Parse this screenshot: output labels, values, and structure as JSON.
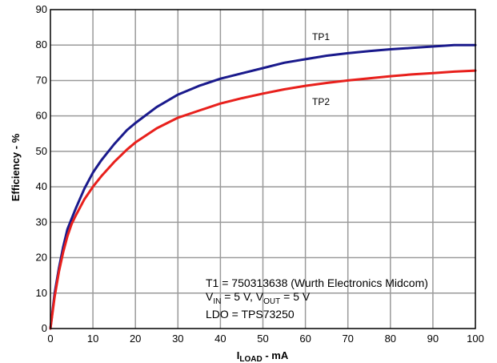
{
  "chart_data": {
    "type": "line",
    "title": "",
    "xlabel": {
      "main": "I",
      "sub": "LOAD",
      "suffix": " - mA"
    },
    "ylabel": "Efficiency - %",
    "xlim": [
      0,
      100
    ],
    "ylim": [
      0,
      90
    ],
    "xticks": [
      0,
      10,
      20,
      30,
      40,
      50,
      60,
      70,
      80,
      90,
      100
    ],
    "yticks": [
      0,
      10,
      20,
      30,
      40,
      50,
      60,
      70,
      80,
      90
    ],
    "grid": true,
    "series": [
      {
        "name": "TP1",
        "color": "#1a1a8c",
        "x": [
          0,
          1,
          2,
          3,
          4,
          5,
          6,
          8,
          10,
          12,
          15,
          18,
          20,
          25,
          30,
          35,
          40,
          45,
          50,
          55,
          60,
          65,
          70,
          75,
          80,
          85,
          90,
          95,
          100
        ],
        "y": [
          0,
          10,
          17,
          23,
          28,
          31,
          34,
          39.5,
          44,
          47.5,
          52,
          56,
          58,
          62.5,
          66,
          68.5,
          70.5,
          72,
          73.5,
          75,
          76,
          77,
          77.7,
          78.3,
          78.8,
          79.2,
          79.6,
          80,
          80
        ]
      },
      {
        "name": "TP2",
        "color": "#e8201c",
        "x": [
          0,
          1,
          2,
          3,
          4,
          5,
          6,
          8,
          10,
          12,
          15,
          18,
          20,
          25,
          30,
          35,
          40,
          45,
          50,
          55,
          60,
          65,
          70,
          75,
          80,
          85,
          90,
          95,
          100
        ],
        "y": [
          0,
          9,
          16,
          21.5,
          26,
          29.5,
          32,
          36.5,
          40,
          43,
          47,
          50.5,
          52.5,
          56.5,
          59.5,
          61.5,
          63.5,
          65,
          66.3,
          67.5,
          68.5,
          69.3,
          70,
          70.6,
          71.2,
          71.7,
          72.1,
          72.5,
          72.8
        ]
      }
    ],
    "annotations": {
      "line1": "T1 = 750313638 (Wurth Electronics Midcom)",
      "line2": {
        "p1": "V",
        "s1": "IN",
        "p2": " = 5 V, V",
        "s2": "OUT",
        "p3": " = 5 V"
      },
      "line3": "LDO = TPS73250"
    }
  }
}
